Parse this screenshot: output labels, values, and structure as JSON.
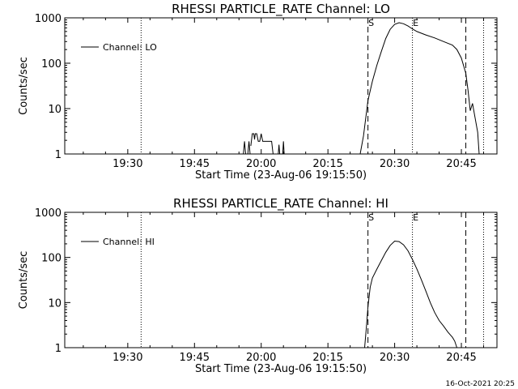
{
  "footer": "16-Oct-2021 20:25",
  "chart_data": [
    {
      "type": "line",
      "title": "RHESSI PARTICLE_RATE Channel: LO",
      "xlabel": "Start Time (23-Aug-06 19:15:50)",
      "ylabel": "Counts/sec",
      "yscale": "log",
      "ylim": [
        1,
        1000
      ],
      "xlim": [
        "19:15:50",
        "20:53:00"
      ],
      "xticks": [
        "19:30",
        "19:45",
        "20:00",
        "20:15",
        "20:30",
        "20:45"
      ],
      "yticks": [
        "1",
        "10",
        "100",
        "1000"
      ],
      "legend": "Channel: LO",
      "legend_position": "top-left",
      "markers": [
        {
          "label": "S",
          "time": "20:24",
          "style": "dashed"
        },
        {
          "label": "E",
          "time": "20:34",
          "style": "dotted"
        },
        {
          "label": "",
          "time": "20:46",
          "style": "dashed"
        },
        {
          "label": "",
          "time": "19:33",
          "style": "dotted"
        },
        {
          "label": "",
          "time": "20:50",
          "style": "dotted"
        }
      ],
      "series": [
        {
          "segments": [
            [
              [
                "19:56:00",
                1
              ],
              [
                "19:56:15",
                1.9
              ],
              [
                "19:56:30",
                1
              ]
            ],
            [
              [
                "19:57:00",
                1
              ],
              [
                "19:57:15",
                1.9
              ],
              [
                "19:57:30",
                1
              ]
            ],
            [
              [
                "19:57:40",
                1.5
              ],
              [
                "19:58:00",
                2.8
              ],
              [
                "19:58:20",
                2.8
              ],
              [
                "19:58:30",
                2.1
              ],
              [
                "19:58:40",
                2.8
              ],
              [
                "19:59:00",
                2.8
              ],
              [
                "19:59:20",
                1.9
              ],
              [
                "19:59:40",
                1.9
              ],
              [
                "20:00:00",
                2.8
              ],
              [
                "20:00:20",
                1.9
              ],
              [
                "20:00:40",
                1.9
              ],
              [
                "20:02:00",
                1.9
              ],
              [
                "20:02:20",
                1.9
              ],
              [
                "20:02:40",
                1
              ]
            ],
            [
              [
                "20:03:50",
                1
              ],
              [
                "20:04:00",
                1.6
              ],
              [
                "20:04:10",
                1
              ]
            ],
            [
              [
                "20:04:50",
                1
              ],
              [
                "20:05:00",
                1.9
              ],
              [
                "20:05:10",
                1
              ]
            ],
            [
              [
                "20:22:15",
                1
              ],
              [
                "20:23:00",
                2.5
              ],
              [
                "20:24:00",
                15
              ],
              [
                "20:25:00",
                40
              ],
              [
                "20:26:00",
                90
              ],
              [
                "20:27:00",
                180
              ],
              [
                "20:28:00",
                350
              ],
              [
                "20:29:00",
                560
              ],
              [
                "20:30:00",
                720
              ],
              [
                "20:31:00",
                780
              ],
              [
                "20:32:00",
                740
              ],
              [
                "20:33:00",
                660
              ],
              [
                "20:34:00",
                570
              ],
              [
                "20:35:00",
                500
              ],
              [
                "20:37:00",
                420
              ],
              [
                "20:39:00",
                360
              ],
              [
                "20:41:00",
                300
              ],
              [
                "20:43:00",
                250
              ],
              [
                "20:44:00",
                200
              ],
              [
                "20:45:00",
                130
              ],
              [
                "20:46:00",
                60
              ],
              [
                "20:46:30",
                25
              ],
              [
                "20:47:00",
                9
              ],
              [
                "20:47:30",
                13
              ],
              [
                "20:48:00",
                7
              ],
              [
                "20:48:40",
                3
              ],
              [
                "20:49:00",
                1
              ]
            ]
          ]
        }
      ]
    },
    {
      "type": "line",
      "title": "RHESSI PARTICLE_RATE Channel: HI",
      "xlabel": "Start Time (23-Aug-06 19:15:50)",
      "ylabel": "Counts/sec",
      "yscale": "log",
      "ylim": [
        1,
        1000
      ],
      "xlim": [
        "19:15:50",
        "20:53:00"
      ],
      "xticks": [
        "19:30",
        "19:45",
        "20:00",
        "20:15",
        "20:30",
        "20:45"
      ],
      "yticks": [
        "1",
        "10",
        "100",
        "1000"
      ],
      "legend": "Channel: HI",
      "legend_position": "top-left",
      "markers": [
        {
          "label": "S",
          "time": "20:24",
          "style": "dashed"
        },
        {
          "label": "E",
          "time": "20:34",
          "style": "dotted"
        },
        {
          "label": "",
          "time": "20:46",
          "style": "dashed"
        },
        {
          "label": "",
          "time": "19:33",
          "style": "dotted"
        },
        {
          "label": "",
          "time": "20:50",
          "style": "dotted"
        }
      ],
      "series": [
        {
          "segments": [
            [
              [
                "20:23:15",
                1
              ],
              [
                "20:23:40",
                3
              ],
              [
                "20:24:00",
                8
              ],
              [
                "20:24:30",
                22
              ],
              [
                "20:25:00",
                35
              ],
              [
                "20:26:00",
                55
              ],
              [
                "20:27:00",
                85
              ],
              [
                "20:28:00",
                130
              ],
              [
                "20:29:00",
                185
              ],
              [
                "20:30:00",
                230
              ],
              [
                "20:31:00",
                225
              ],
              [
                "20:32:00",
                190
              ],
              [
                "20:33:00",
                140
              ],
              [
                "20:34:00",
                90
              ],
              [
                "20:35:00",
                55
              ],
              [
                "20:36:00",
                32
              ],
              [
                "20:37:00",
                18
              ],
              [
                "20:38:00",
                10
              ],
              [
                "20:39:00",
                6
              ],
              [
                "20:40:00",
                4
              ],
              [
                "20:41:00",
                3
              ],
              [
                "20:42:00",
                2.2
              ],
              [
                "20:43:00",
                1.7
              ],
              [
                "20:43:30",
                1.4
              ],
              [
                "20:44:00",
                1
              ]
            ]
          ]
        }
      ]
    }
  ]
}
